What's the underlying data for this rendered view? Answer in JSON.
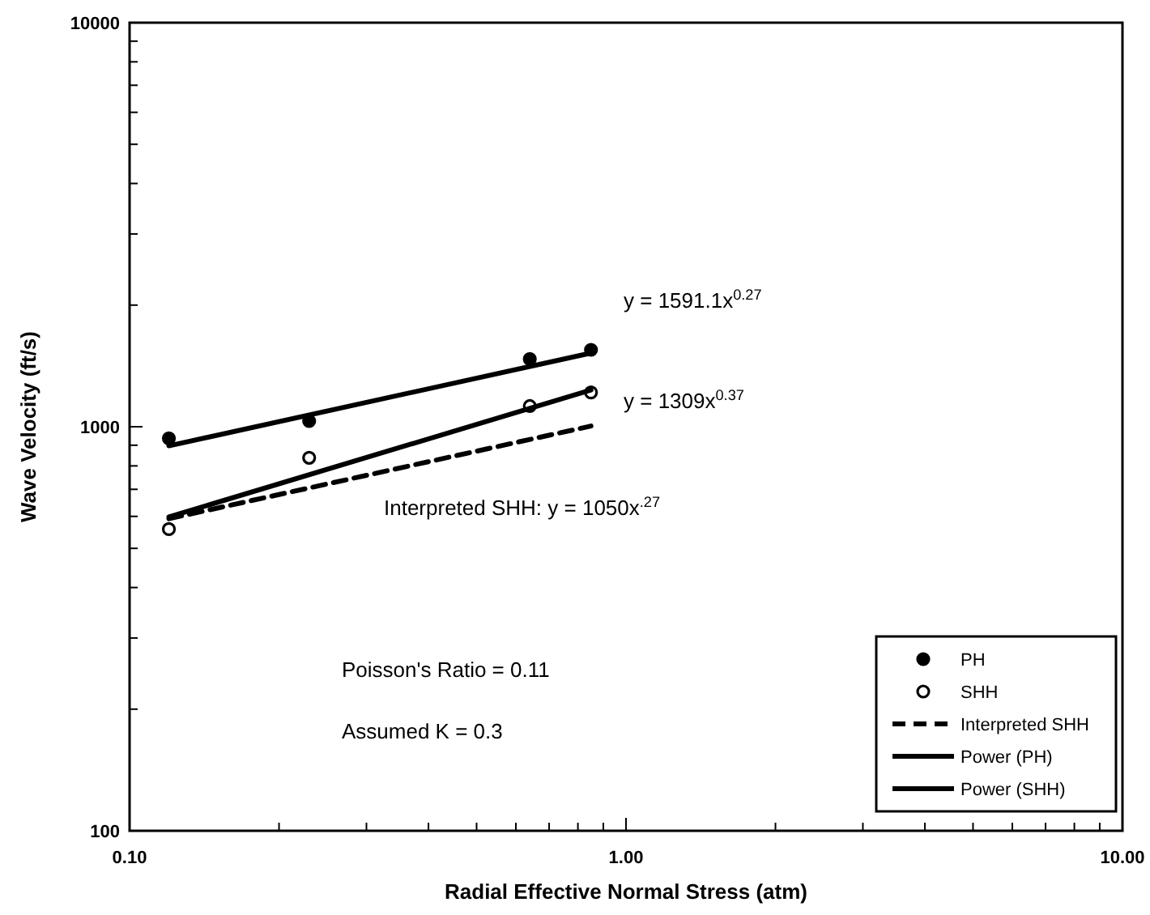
{
  "chart_data": {
    "type": "scatter",
    "xlabel": "Radial Effective Normal Stress (atm)",
    "ylabel": "Wave Velocity (ft/s)",
    "log": "xy",
    "xlim": [
      0.1,
      10
    ],
    "ylim": [
      100,
      10000
    ],
    "xticks": [
      {
        "value": 0.1,
        "label": "0.10"
      },
      {
        "value": 0.2,
        "label": null
      },
      {
        "value": 0.3,
        "label": null
      },
      {
        "value": 0.4,
        "label": null
      },
      {
        "value": 0.5,
        "label": null
      },
      {
        "value": 0.6,
        "label": null
      },
      {
        "value": 0.7,
        "label": null
      },
      {
        "value": 0.8,
        "label": null
      },
      {
        "value": 0.9,
        "label": null
      },
      {
        "value": 1,
        "label": "1.00"
      },
      {
        "value": 2,
        "label": null
      },
      {
        "value": 3,
        "label": null
      },
      {
        "value": 4,
        "label": null
      },
      {
        "value": 5,
        "label": null
      },
      {
        "value": 6,
        "label": null
      },
      {
        "value": 7,
        "label": null
      },
      {
        "value": 8,
        "label": null
      },
      {
        "value": 9,
        "label": null
      },
      {
        "value": 10,
        "label": "10.00"
      }
    ],
    "yticks": [
      100,
      {
        "value": 200,
        "label": null
      },
      {
        "value": 300,
        "label": null
      },
      {
        "value": 400,
        "label": null
      },
      {
        "value": 500,
        "label": null
      },
      {
        "value": 600,
        "label": null
      },
      {
        "value": 700,
        "label": null
      },
      {
        "value": 800,
        "label": null
      },
      {
        "value": 900,
        "label": null
      },
      1000,
      {
        "value": 2000,
        "label": null
      },
      {
        "value": 3000,
        "label": null
      },
      {
        "value": 4000,
        "label": null
      },
      {
        "value": 5000,
        "label": null
      },
      {
        "value": 6000,
        "label": null
      },
      {
        "value": 7000,
        "label": null
      },
      {
        "value": 8000,
        "label": null
      },
      {
        "value": 9000,
        "label": null
      },
      10000
    ],
    "grid": false,
    "legend": "bottom right",
    "series": [
      {
        "name": "PH",
        "marker": "circle",
        "color": "#000000",
        "x": [
          0.12,
          0.23,
          0.64,
          0.85
        ],
        "values": [
          936,
          1033,
          1471,
          1550
        ]
      },
      {
        "name": "SHH",
        "marker": "circle",
        "color": "#ffffff",
        "x": [
          0.12,
          0.23,
          0.64,
          0.85
        ],
        "values": [
          558,
          838,
          1125,
          1216
        ]
      },
      {
        "name": "Interpreted SHH",
        "type": "line",
        "line_style": "dashed",
        "marker": "none",
        "color": "#000000",
        "x": [
          0.12,
          0.85
        ],
        "values": [
          592,
          1004
        ]
      },
      {
        "name": "Power (PH)",
        "type": "line",
        "line_style": "solid",
        "marker": "none",
        "color": "#000000",
        "x": [
          0.12,
          0.85
        ],
        "values": [
          897,
          1522
        ]
      },
      {
        "name": "Power (SHH)",
        "type": "line",
        "line_style": "solid",
        "marker": "none",
        "color": "#000000",
        "x": [
          0.12,
          0.85
        ],
        "values": [
          598,
          1233
        ]
      }
    ],
    "annotations": [
      "y = 1591.1x$^{0.27}$",
      "y = 1309x$^{0.37}$",
      "Interpreted SHH:  y = 1050x$^{.27}$",
      "Poisson's Ratio = 0.11",
      "Assumed K = 0.3"
    ]
  }
}
